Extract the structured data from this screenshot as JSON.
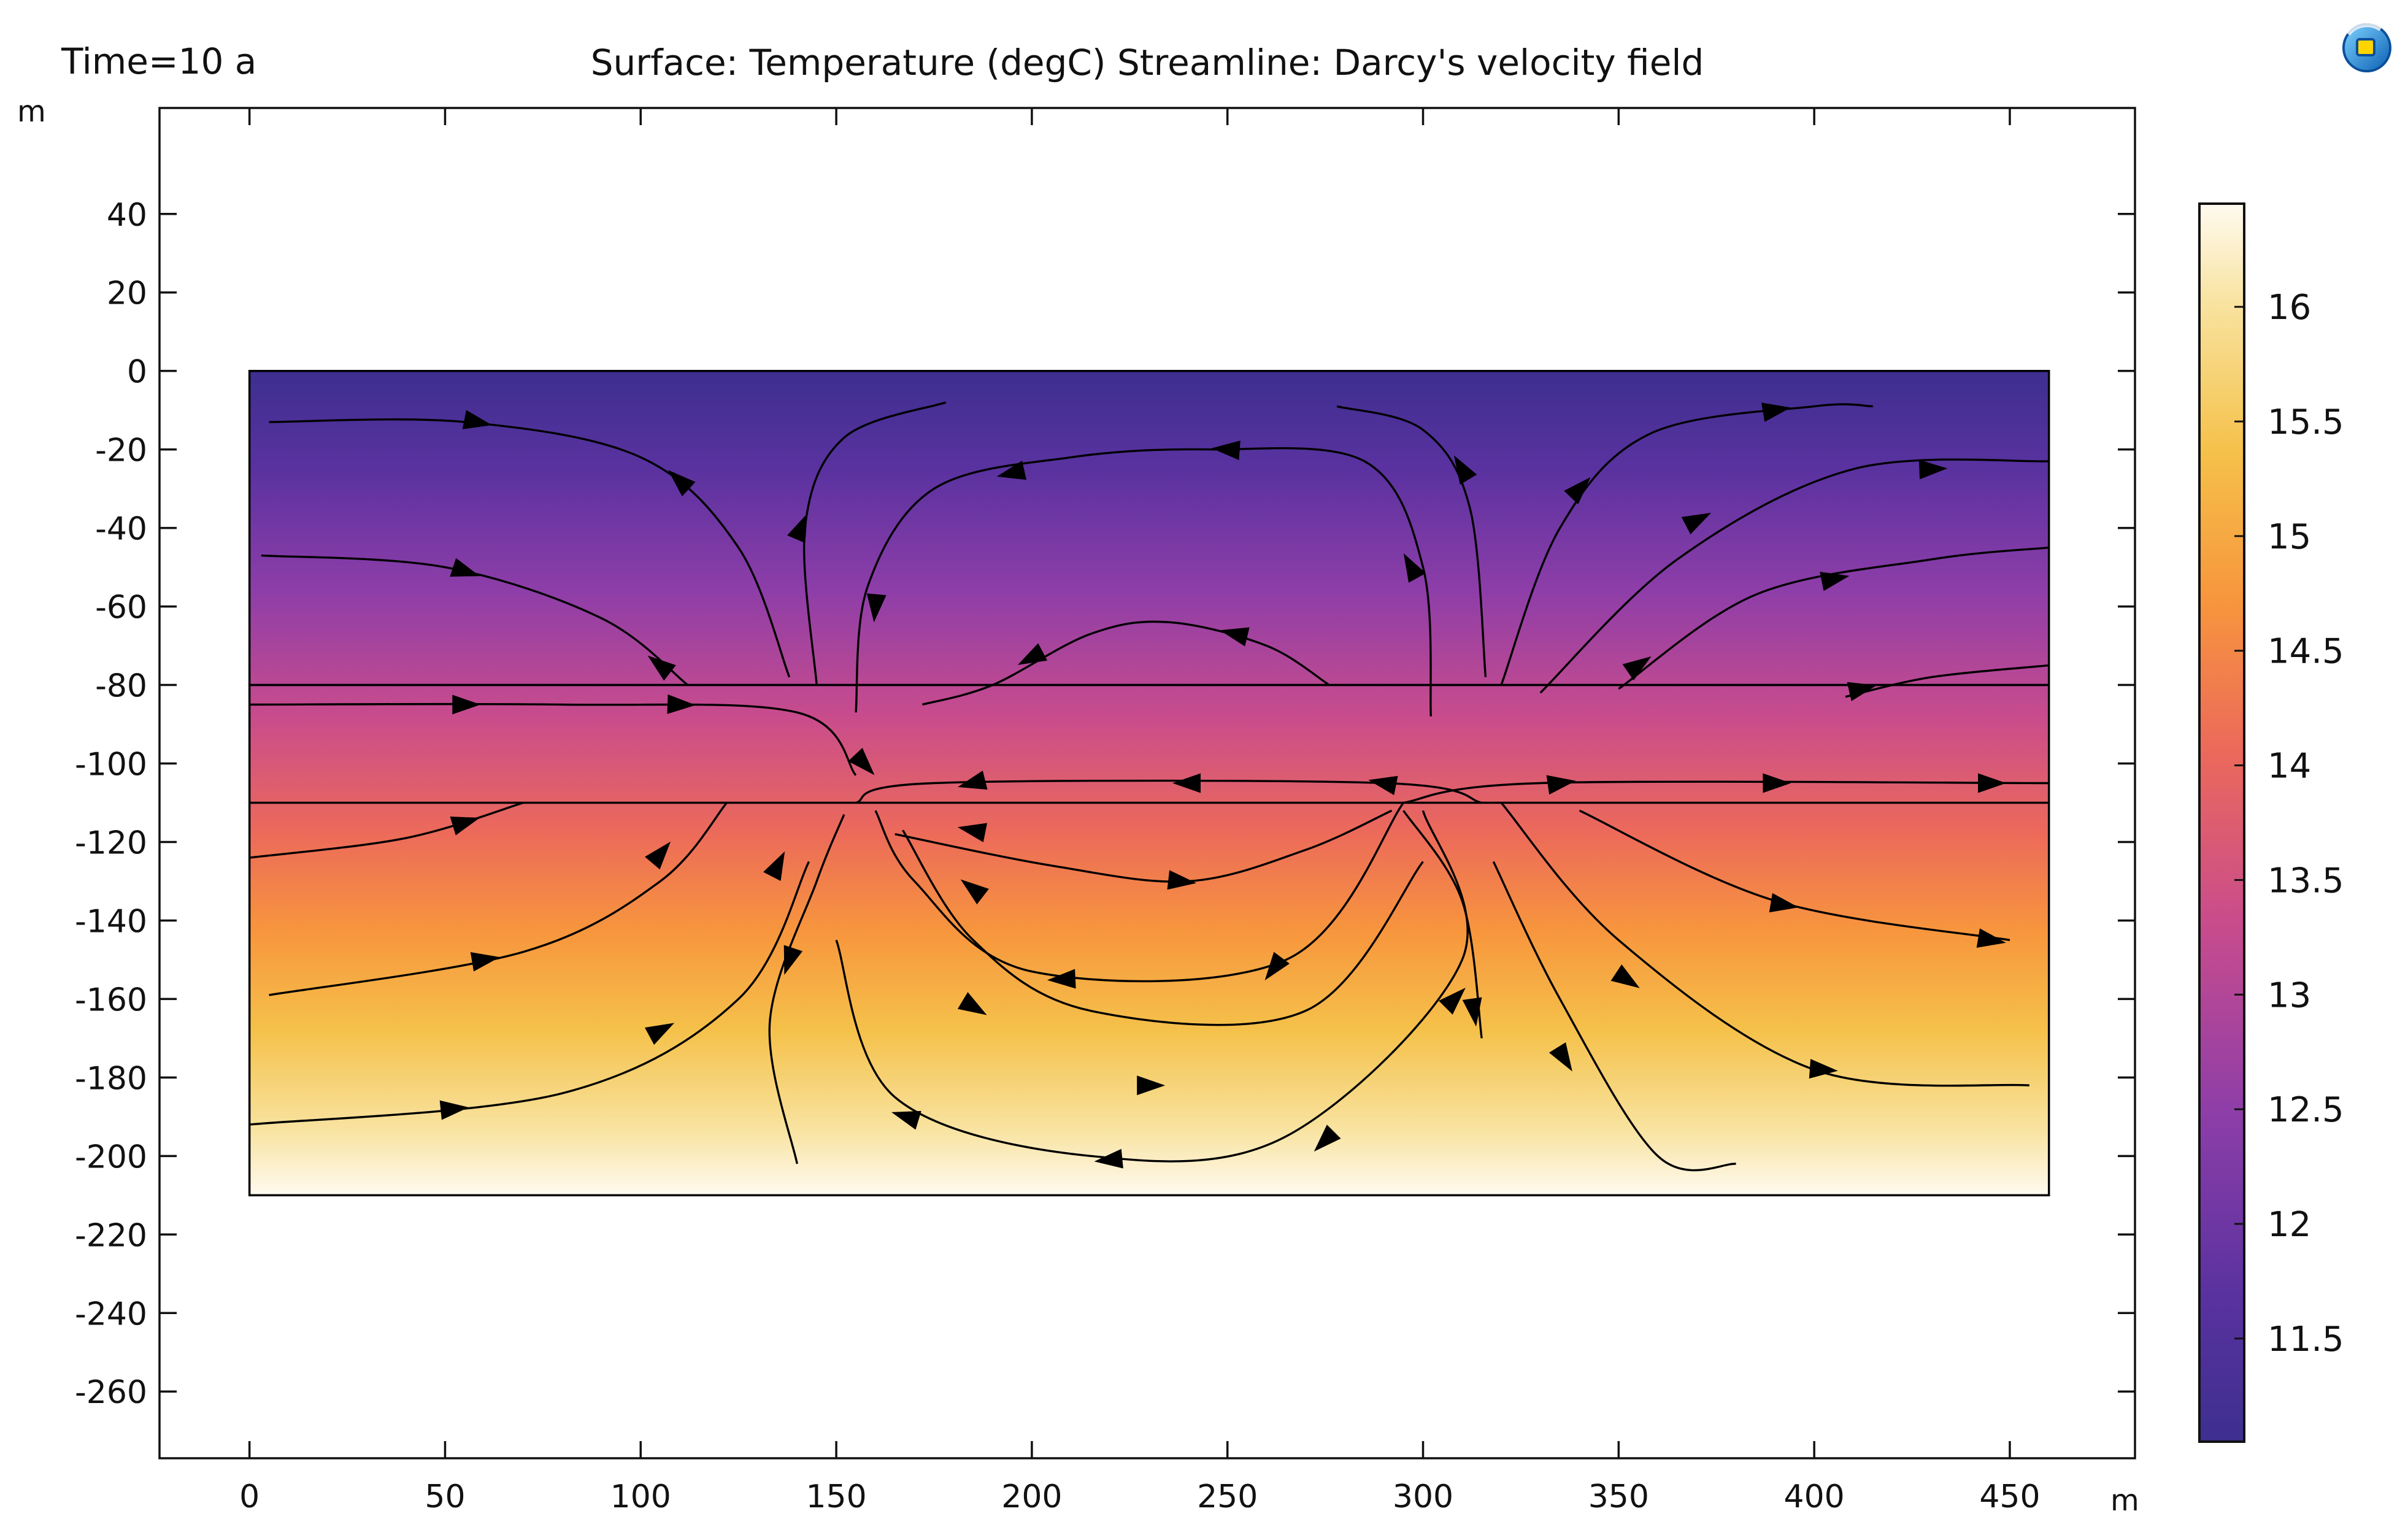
{
  "header": {
    "time_label": "Time=10 a",
    "plot_title": "Surface: Temperature (degC)  Streamline: Darcy's velocity field",
    "y_unit": "m",
    "x_unit": "m"
  },
  "app_icon": {
    "name": "comsol-logo-icon"
  },
  "chart_data": {
    "type": "heatmap",
    "title": "Surface: Temperature (degC)  Streamline: Darcy's velocity field",
    "subtitle": "Time=10 a",
    "xlabel": "m",
    "ylabel": "m",
    "xlim": [
      -23,
      482
    ],
    "ylim": [
      -277,
      67
    ],
    "x_ticks": [
      0,
      50,
      100,
      150,
      200,
      250,
      300,
      350,
      400,
      450
    ],
    "y_ticks": [
      40,
      20,
      0,
      -20,
      -40,
      -60,
      -80,
      -100,
      -120,
      -140,
      -160,
      -180,
      -200,
      -220,
      -240,
      -260
    ],
    "domain": {
      "x": [
        0,
        460
      ],
      "y": [
        -210,
        0
      ]
    },
    "layer_boundaries_y": [
      -80,
      -110
    ],
    "field": "Temperature (degC)",
    "colorbar": {
      "range": [
        11.05,
        16.45
      ],
      "ticks": [
        "16",
        "15.5",
        "15",
        "14.5",
        "14",
        "13.5",
        "13",
        "12.5",
        "12",
        "11.5"
      ],
      "tick_values": [
        16,
        15.5,
        15,
        14.5,
        14,
        13.5,
        13,
        12.5,
        12,
        11.5
      ],
      "colors": [
        "#3d2f8f",
        "#5a32a0",
        "#8f3ea8",
        "#c94c8c",
        "#ec6a5a",
        "#f7963d",
        "#f5c14a",
        "#f8e3a0",
        "#fffaf0"
      ]
    },
    "grid": false,
    "streamlines": [
      {
        "points": [
          [
            5,
            -13
          ],
          [
            55,
            -13
          ],
          [
            100,
            -22
          ],
          [
            125,
            -45
          ],
          [
            138,
            -78
          ]
        ],
        "arrows": [
          [
            58,
            -13,
            1
          ],
          [
            110,
            -28,
            -1
          ]
        ]
      },
      {
        "points": [
          [
            3,
            -47
          ],
          [
            50,
            -50
          ],
          [
            90,
            -63
          ],
          [
            112,
            -80
          ]
        ],
        "arrows": [
          [
            55,
            -51,
            1
          ],
          [
            105,
            -75,
            -1
          ]
        ]
      },
      {
        "points": [
          [
            178,
            -8
          ],
          [
            152,
            -17
          ],
          [
            142,
            -40
          ],
          [
            145,
            -80
          ]
        ],
        "arrows": [
          [
            141,
            -40,
            -1
          ]
        ]
      },
      {
        "points": [
          [
            155,
            -87
          ],
          [
            158,
            -55
          ],
          [
            175,
            -30
          ],
          [
            210,
            -22
          ],
          [
            245,
            -20
          ],
          [
            285,
            -23
          ],
          [
            300,
            -50
          ],
          [
            302,
            -88
          ]
        ],
        "arrows": [
          [
            160,
            -60,
            -1
          ],
          [
            195,
            -26,
            -1
          ],
          [
            250,
            -20,
            -1
          ],
          [
            297,
            -50,
            -1
          ]
        ]
      },
      {
        "points": [
          [
            172,
            -85
          ],
          [
            190,
            -80
          ],
          [
            215,
            -67
          ],
          [
            235,
            -64
          ],
          [
            260,
            -70
          ],
          [
            276,
            -80
          ]
        ],
        "arrows": [
          [
            200,
            -73,
            -1
          ],
          [
            252,
            -67,
            -1
          ]
        ]
      },
      {
        "points": [
          [
            278,
            -9
          ],
          [
            300,
            -15
          ],
          [
            312,
            -35
          ],
          [
            316,
            -78
          ]
        ],
        "arrows": [
          [
            310,
            -25,
            -1
          ]
        ]
      },
      {
        "points": [
          [
            320,
            -80
          ],
          [
            335,
            -40
          ],
          [
            358,
            -16
          ],
          [
            400,
            -9
          ],
          [
            415,
            -9
          ]
        ],
        "arrows": [
          [
            340,
            -30,
            1
          ],
          [
            390,
            -10,
            1
          ]
        ]
      },
      {
        "points": [
          [
            330,
            -82
          ],
          [
            365,
            -48
          ],
          [
            410,
            -25
          ],
          [
            460,
            -23
          ]
        ],
        "arrows": [
          [
            370,
            -38,
            1
          ],
          [
            430,
            -25,
            1
          ]
        ]
      },
      {
        "points": [
          [
            350,
            -81
          ],
          [
            385,
            -57
          ],
          [
            430,
            -48
          ],
          [
            460,
            -45
          ]
        ],
        "arrows": [
          [
            355,
            -75,
            1
          ],
          [
            405,
            -53,
            1
          ]
        ]
      },
      {
        "points": [
          [
            408,
            -83
          ],
          [
            430,
            -78
          ],
          [
            460,
            -75
          ]
        ],
        "arrows": [
          [
            412,
            -81,
            1
          ]
        ]
      },
      {
        "points": [
          [
            0,
            -85
          ],
          [
            80,
            -85
          ],
          [
            140,
            -87
          ],
          [
            155,
            -103
          ]
        ],
        "arrows": [
          [
            55,
            -85,
            1
          ],
          [
            110,
            -85,
            1
          ],
          [
            157,
            -100,
            1
          ]
        ]
      },
      {
        "points": [
          [
            155,
            -110
          ],
          [
            175,
            -105
          ],
          [
            290,
            -105
          ],
          [
            315,
            -110
          ]
        ],
        "arrows": [
          [
            185,
            -105,
            -1
          ],
          [
            240,
            -105,
            -1
          ],
          [
            290,
            -105,
            -1
          ]
        ]
      },
      {
        "points": [
          [
            295,
            -110
          ],
          [
            330,
            -105
          ],
          [
            460,
            -105
          ]
        ],
        "arrows": [
          [
            335,
            -105,
            1
          ],
          [
            390,
            -105,
            1
          ],
          [
            445,
            -105,
            1
          ]
        ]
      },
      {
        "points": [
          [
            0,
            -124
          ],
          [
            40,
            -119
          ],
          [
            70,
            -110
          ]
        ],
        "arrows": [
          [
            55,
            -115,
            1
          ]
        ]
      },
      {
        "points": [
          [
            5,
            -159
          ],
          [
            70,
            -148
          ],
          [
            105,
            -130
          ],
          [
            122,
            -110
          ]
        ],
        "arrows": [
          [
            60,
            -150,
            1
          ],
          [
            105,
            -123,
            1
          ]
        ]
      },
      {
        "points": [
          [
            0,
            -192
          ],
          [
            80,
            -184
          ],
          [
            125,
            -160
          ],
          [
            143,
            -125
          ]
        ],
        "arrows": [
          [
            52,
            -188,
            1
          ],
          [
            105,
            -168,
            1
          ],
          [
            135,
            -126,
            1
          ]
        ]
      },
      {
        "points": [
          [
            152,
            -113
          ],
          [
            145,
            -130
          ],
          [
            133,
            -166
          ],
          [
            140,
            -202
          ]
        ],
        "arrows": [
          [
            138,
            -150,
            1
          ]
        ]
      },
      {
        "points": [
          [
            160,
            -112
          ],
          [
            170,
            -130
          ],
          [
            200,
            -153
          ],
          [
            265,
            -150
          ],
          [
            295,
            -110
          ]
        ],
        "arrows": [
          [
            208,
            -155,
            -1
          ],
          [
            262,
            -152,
            -1
          ],
          [
            185,
            -132,
            -1
          ]
        ]
      },
      {
        "points": [
          [
            167,
            -117
          ],
          [
            185,
            -145
          ],
          [
            215,
            -163
          ],
          [
            270,
            -163
          ],
          [
            300,
            -125
          ]
        ],
        "arrows": [
          [
            185,
            -162,
            1
          ],
          [
            230,
            -182,
            1
          ]
        ]
      },
      {
        "points": [
          [
            292,
            -112
          ],
          [
            270,
            -122
          ],
          [
            240,
            -130
          ],
          [
            205,
            -126
          ],
          [
            165,
            -118
          ]
        ],
        "arrows": [
          [
            238,
            -130,
            -1
          ],
          [
            185,
            -117,
            1
          ]
        ]
      },
      {
        "points": [
          [
            150,
            -145
          ],
          [
            165,
            -185
          ],
          [
            215,
            -200
          ],
          [
            265,
            -195
          ],
          [
            310,
            -150
          ],
          [
            300,
            -112
          ]
        ],
        "arrows": [
          [
            168,
            -190,
            -1
          ],
          [
            220,
            -201,
            -1
          ],
          [
            275,
            -196,
            -1
          ],
          [
            308,
            -160,
            1
          ]
        ]
      },
      {
        "points": [
          [
            295,
            -112
          ],
          [
            310,
            -135
          ],
          [
            315,
            -170
          ]
        ],
        "arrows": [
          [
            313,
            -163,
            1
          ]
        ]
      },
      {
        "points": [
          [
            318,
            -125
          ],
          [
            335,
            -160
          ],
          [
            360,
            -200
          ],
          [
            380,
            -202
          ]
        ],
        "arrows": [
          [
            336,
            -175,
            1
          ]
        ]
      },
      {
        "points": [
          [
            320,
            -110
          ],
          [
            350,
            -145
          ],
          [
            400,
            -178
          ],
          [
            455,
            -182
          ]
        ],
        "arrows": [
          [
            352,
            -155,
            1
          ],
          [
            402,
            -178,
            1
          ]
        ]
      },
      {
        "points": [
          [
            340,
            -112
          ],
          [
            390,
            -135
          ],
          [
            450,
            -145
          ]
        ],
        "arrows": [
          [
            392,
            -136,
            1
          ],
          [
            445,
            -145,
            1
          ]
        ]
      }
    ]
  }
}
